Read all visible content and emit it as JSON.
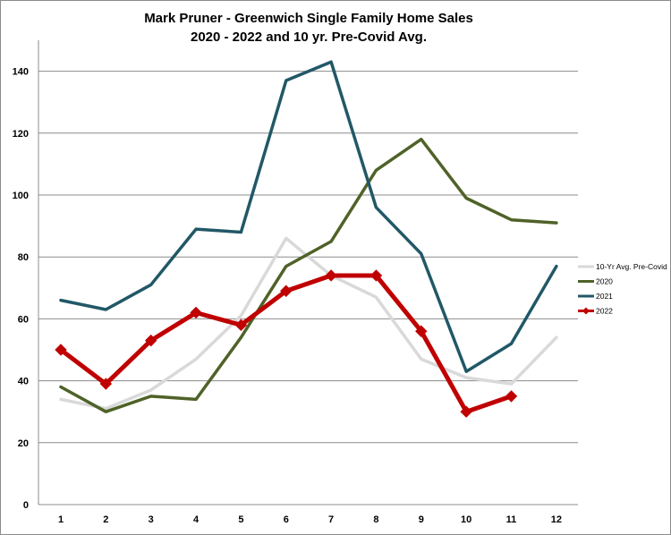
{
  "chart_data": {
    "type": "line",
    "title": "Mark Pruner - Greenwich Single Family Home Sales",
    "subtitle": "2020 - 2022 and 10 yr. Pre-Covid Avg.",
    "xlabel": "",
    "ylabel": "",
    "x": [
      1,
      2,
      3,
      4,
      5,
      6,
      7,
      8,
      9,
      10,
      11,
      12
    ],
    "x_tick_labels": [
      "1",
      "2",
      "3",
      "4",
      "5",
      "6",
      "7",
      "8",
      "9",
      "10",
      "11",
      "12"
    ],
    "ylim": [
      0,
      150
    ],
    "y_ticks": [
      0,
      20,
      40,
      60,
      80,
      100,
      120,
      140
    ],
    "y_tick_labels": [
      "0",
      "20",
      "40",
      "60",
      "80",
      "100",
      "120",
      "140"
    ],
    "grid": "horizontal",
    "legend_position": "right",
    "series": [
      {
        "name": "10-Yr Avg. Pre-Covid",
        "color": "#d9d9d9",
        "marker": "none",
        "values": [
          34,
          31,
          37,
          47,
          61,
          86,
          74,
          67,
          47,
          41,
          39,
          54
        ]
      },
      {
        "name": "2020",
        "color": "#4f6228",
        "marker": "none",
        "values": [
          38,
          30,
          35,
          34,
          54,
          77,
          85,
          108,
          118,
          99,
          92,
          91
        ]
      },
      {
        "name": "2021",
        "color": "#215867",
        "marker": "none",
        "values": [
          66,
          63,
          71,
          89,
          88,
          137,
          143,
          96,
          81,
          43,
          52,
          77
        ]
      },
      {
        "name": "2022",
        "color": "#c00000",
        "marker": "diamond",
        "values": [
          50,
          39,
          53,
          62,
          58,
          69,
          74,
          74,
          56,
          30,
          35,
          null
        ]
      }
    ]
  }
}
